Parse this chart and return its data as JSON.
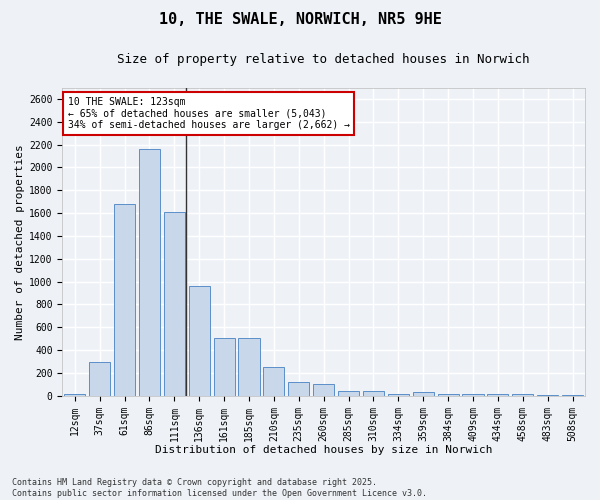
{
  "title1": "10, THE SWALE, NORWICH, NR5 9HE",
  "title2": "Size of property relative to detached houses in Norwich",
  "xlabel": "Distribution of detached houses by size in Norwich",
  "ylabel": "Number of detached properties",
  "categories": [
    "12sqm",
    "37sqm",
    "61sqm",
    "86sqm",
    "111sqm",
    "136sqm",
    "161sqm",
    "185sqm",
    "210sqm",
    "235sqm",
    "260sqm",
    "285sqm",
    "310sqm",
    "334sqm",
    "359sqm",
    "384sqm",
    "409sqm",
    "434sqm",
    "458sqm",
    "483sqm",
    "508sqm"
  ],
  "values": [
    20,
    300,
    1680,
    2160,
    1610,
    960,
    510,
    510,
    250,
    125,
    100,
    45,
    45,
    20,
    30,
    20,
    20,
    20,
    20,
    10,
    10
  ],
  "bar_color": "#c8d8ea",
  "bar_edge_color": "#5b8fc9",
  "annotation_text_line1": "10 THE SWALE: 123sqm",
  "annotation_text_line2": "← 65% of detached houses are smaller (5,043)",
  "annotation_text_line3": "34% of semi-detached houses are larger (2,662) →",
  "annotation_box_color": "#ffffff",
  "annotation_box_edge": "#cc0000",
  "vline_color": "#333333",
  "footer1": "Contains HM Land Registry data © Crown copyright and database right 2025.",
  "footer2": "Contains public sector information licensed under the Open Government Licence v3.0.",
  "ylim": [
    0,
    2700
  ],
  "yticks": [
    0,
    200,
    400,
    600,
    800,
    1000,
    1200,
    1400,
    1600,
    1800,
    2000,
    2200,
    2400,
    2600
  ],
  "bg_color": "#eef2f7",
  "grid_color": "#ffffff",
  "title_fontsize": 11,
  "subtitle_fontsize": 9,
  "tick_fontsize": 7,
  "axis_label_fontsize": 8,
  "footer_fontsize": 6,
  "annot_fontsize": 7
}
